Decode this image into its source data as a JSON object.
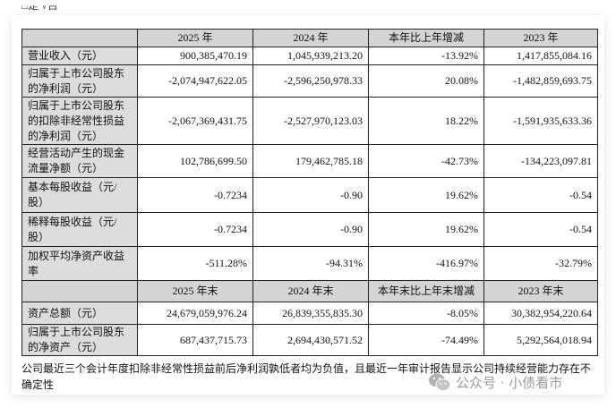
{
  "top_partial_text": "□是 √否",
  "header1": [
    "",
    "2025 年",
    "2024 年",
    "本年比上年增减",
    "2023 年"
  ],
  "rows1": [
    {
      "label": "营业收入（元）",
      "values": [
        "900,385,470.19",
        "1,045,939,213.20",
        "-13.92%",
        "1,417,855,084.16"
      ]
    },
    {
      "label": "归属于上市公司股东的净利润（元）",
      "values": [
        "-2,074,947,622.05",
        "-2,596,250,978.33",
        "20.08%",
        "-1,482,859,693.75"
      ]
    },
    {
      "label": "归属于上市公司股东的扣除非经常性损益的净利润（元）",
      "values": [
        "-2,067,369,431.75",
        "-2,527,970,123.03",
        "18.22%",
        "-1,591,935,633.36"
      ]
    },
    {
      "label": "经营活动产生的现金流量净额（元）",
      "values": [
        "102,786,699.50",
        "179,462,785.18",
        "-42.73%",
        "-134,223,097.81"
      ]
    },
    {
      "label": "基本每股收益（元/股）",
      "values": [
        "-0.7234",
        "-0.90",
        "19.62%",
        "-0.54"
      ]
    },
    {
      "label": "稀释每股收益（元/股）",
      "values": [
        "-0.7234",
        "-0.90",
        "19.62%",
        "-0.54"
      ]
    },
    {
      "label": "加权平均净资产收益率",
      "values": [
        "-511.28%",
        "-94.31%",
        "-416.97%",
        "-32.79%"
      ]
    }
  ],
  "header2": [
    "",
    "2025 年末",
    "2024 年末",
    "本年末比上年末增减",
    "2023 年末"
  ],
  "rows2": [
    {
      "label": "资产总额（元）",
      "values": [
        "24,679,059,976.24",
        "26,839,355,835.30",
        "-8.05%",
        "30,382,954,220.64"
      ]
    },
    {
      "label": "归属于上市公司股东的净资产（元）",
      "values": [
        "687,437,715.73",
        "2,694,430,571.52",
        "-74.49%",
        "5,292,564,018.94"
      ]
    }
  ],
  "note": "公司最近三个会计年度扣除非经常性损益前后净利润孰低者均为负值，且最近一年审计报告显示公司持续经营能力存在不确定性",
  "watermark": "公众号 · 小债看市"
}
